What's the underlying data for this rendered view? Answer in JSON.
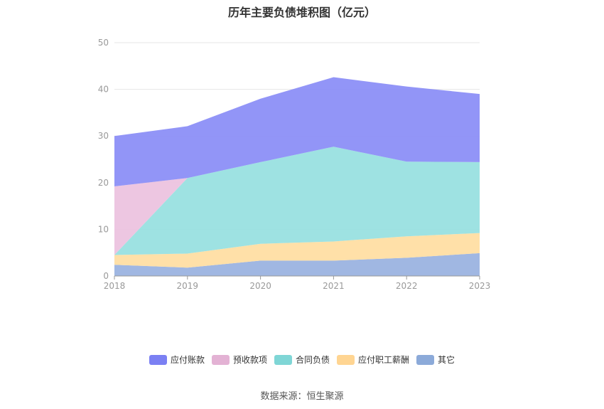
{
  "chart_data": {
    "type": "area",
    "stacked": true,
    "title": "历年主要负债堆积图（亿元）",
    "categories": [
      "2018",
      "2019",
      "2020",
      "2021",
      "2022",
      "2023"
    ],
    "ylim": [
      0,
      50
    ],
    "yticks": [
      0,
      10,
      20,
      30,
      40,
      50
    ],
    "grid": true,
    "legend_position": "bottom",
    "series": [
      {
        "name": "其它",
        "color": "#9BB3E0",
        "values": [
          2.4,
          1.8,
          3.3,
          3.3,
          3.9,
          4.9
        ]
      },
      {
        "name": "应付职工薪酬",
        "color": "#FFDEA3",
        "values": [
          2.1,
          3.0,
          3.6,
          4.1,
          4.6,
          4.3
        ]
      },
      {
        "name": "合同负债",
        "color": "#99E0E0",
        "values": [
          0,
          16.2,
          17.5,
          20.3,
          16.0,
          15.2
        ]
      },
      {
        "name": "预收款项",
        "color": "#ECC3DF",
        "values": [
          14.7,
          0,
          0,
          0,
          0,
          0
        ]
      },
      {
        "name": "应付账款",
        "color": "#8C8FF7",
        "values": [
          10.8,
          11.1,
          13.6,
          14.9,
          16.1,
          14.6
        ]
      }
    ]
  },
  "legend": {
    "items": [
      {
        "label": "应付账款",
        "color": "#7B80F3"
      },
      {
        "label": "预收款项",
        "color": "#E3B2D4"
      },
      {
        "label": "合同负债",
        "color": "#7FD6D6"
      },
      {
        "label": "应付职工薪酬",
        "color": "#FFD592"
      },
      {
        "label": "其它",
        "color": "#8CAAD9"
      }
    ]
  },
  "source": "数据来源：恒生聚源"
}
